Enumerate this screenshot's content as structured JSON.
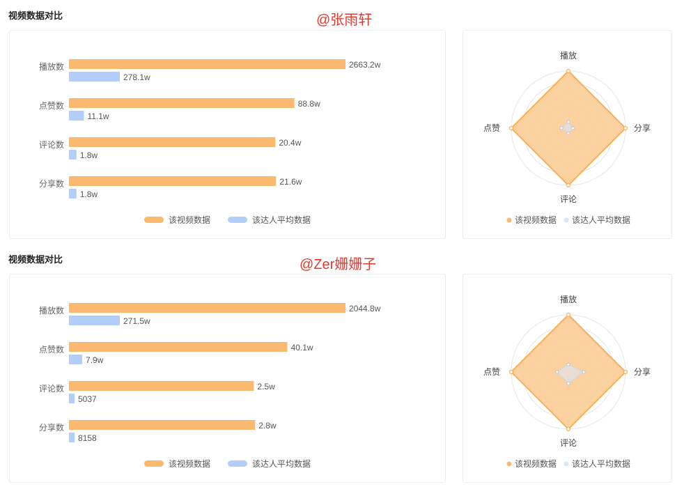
{
  "colors": {
    "current": "#fbb96f",
    "average": "#b3cdf9",
    "radar_fill": "#fbc98f",
    "radar_stroke": "#f5b057",
    "radar_avg_fill": "#dbe6f5",
    "author": "#e03a2f"
  },
  "sections": [
    {
      "title": "视频数据对比",
      "author": "@张雨轩",
      "chart_data": [
        {
          "type": "bar",
          "orientation": "horizontal",
          "categories": [
            "播放数",
            "点赞数",
            "评论数",
            "分享数"
          ],
          "series": [
            {
              "name": "该视频数据",
              "values": [
                2663.2,
                88.8,
                20.4,
                21.6
              ],
              "labels": [
                "2663.2w",
                "88.8w",
                "20.4w",
                "21.6w"
              ]
            },
            {
              "name": "该达人平均数据",
              "values": [
                278.1,
                11.1,
                1.8,
                1.8
              ],
              "labels": [
                "278.1w",
                "11.1w",
                "1.8w",
                "1.8w"
              ]
            }
          ],
          "legend": "bottom"
        },
        {
          "type": "radar",
          "indicators": [
            "播放",
            "分享",
            "评论",
            "点赞"
          ],
          "series": [
            {
              "name": "该视频数据",
              "values": [
                1,
                1,
                1,
                1
              ]
            },
            {
              "name": "该达人平均数据",
              "values": [
                0.11,
                0.08,
                0.09,
                0.12
              ]
            }
          ],
          "legend": "bottom"
        }
      ]
    },
    {
      "title": "视频数据对比",
      "author": "@Zer姗姗子",
      "chart_data": [
        {
          "type": "bar",
          "orientation": "horizontal",
          "categories": [
            "播放数",
            "点赞数",
            "评论数",
            "分享数"
          ],
          "series": [
            {
              "name": "该视频数据",
              "values": [
                2044.8,
                40.1,
                2.5,
                2.8
              ],
              "labels": [
                "2044.8w",
                "40.1w",
                "2.5w",
                "2.8w"
              ]
            },
            {
              "name": "该达人平均数据",
              "values": [
                271.5,
                7.9,
                0.5037,
                0.8158
              ],
              "labels": [
                "271.5w",
                "7.9w",
                "5037",
                "8158"
              ]
            }
          ],
          "legend": "bottom"
        },
        {
          "type": "radar",
          "indicators": [
            "播放",
            "分享",
            "评论",
            "点赞"
          ],
          "series": [
            {
              "name": "该视频数据",
              "values": [
                1,
                1,
                1,
                1
              ]
            },
            {
              "name": "该达人平均数据",
              "values": [
                0.13,
                0.27,
                0.2,
                0.2
              ]
            }
          ],
          "legend": "bottom"
        }
      ]
    }
  ]
}
